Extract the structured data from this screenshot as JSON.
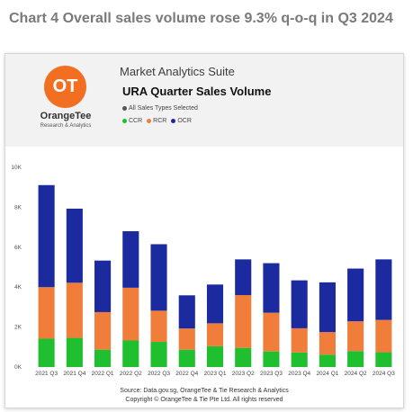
{
  "heading": "Chart 4 Overall sales volume rose 9.3% q-o-q in Q3 2024",
  "app": {
    "suite": "Market Analytics Suite",
    "logo": {
      "mark": "OT",
      "name": "OrangeTee",
      "tagline": "Research & Analytics"
    },
    "filter_label": "All Sales Types Selected",
    "filter_color": "#555555"
  },
  "chart_data": {
    "type": "bar",
    "stacked": true,
    "title": "URA Quarter Sales Volume",
    "xlabel": "",
    "ylabel": "",
    "ylim": [
      0,
      10000
    ],
    "yticks": [
      0,
      2000,
      4000,
      6000,
      8000,
      10000
    ],
    "ytick_labels": [
      "0K",
      "2K",
      "4K",
      "6K",
      "8K",
      "10K"
    ],
    "grid": false,
    "legend_position": "top-left",
    "categories": [
      "2021 Q3",
      "2021 Q4",
      "2022 Q1",
      "2022 Q2",
      "2022 Q3",
      "2022 Q4",
      "2023 Q1",
      "2023 Q2",
      "2023 Q3",
      "2023 Q4",
      "2024 Q1",
      "2024 Q2",
      "2024 Q3"
    ],
    "series": [
      {
        "name": "CCR",
        "color": "#1fbf2f",
        "values": [
          1420,
          1460,
          870,
          1330,
          1260,
          870,
          1040,
          960,
          780,
          730,
          620,
          800,
          740
        ]
      },
      {
        "name": "RCR",
        "color": "#f07d3a",
        "values": [
          2580,
          2760,
          1880,
          2640,
          1560,
          1060,
          1150,
          2640,
          1940,
          1210,
          1130,
          1490,
          1620
        ]
      },
      {
        "name": "OCR",
        "color": "#1c2aa0",
        "values": [
          5110,
          3710,
          2580,
          2830,
          3330,
          1660,
          1940,
          1790,
          2480,
          2400,
          2490,
          2640,
          3030
        ]
      }
    ]
  },
  "source_lines": [
    "Source: Data.gov.sg, OrangeTee & Tie Research & Analytics",
    "Copyright © OrangeTee & Tie Pte Ltd. All rights reserved"
  ]
}
